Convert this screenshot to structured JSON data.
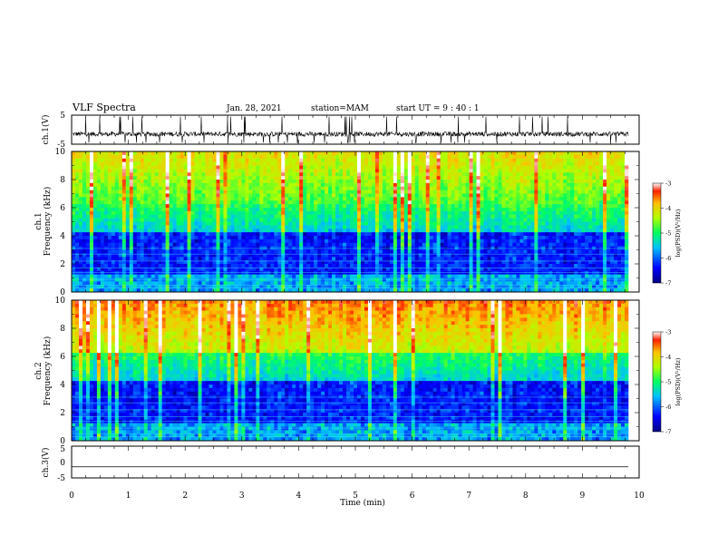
{
  "header": {
    "title": "VLF Spectra",
    "date": "Jan. 28, 2021",
    "station": "station=MAM",
    "start_ut": "start UT =  9 : 40 : 1"
  },
  "chart_data": [
    {
      "type": "line",
      "name": "waveform-ch1",
      "ylabel": "ch.1(V)",
      "ylim": [
        -5,
        5
      ],
      "yticks": [
        "5",
        "-5"
      ],
      "xlim": [
        0,
        10
      ],
      "description_level": "noisy trace around -1.5 V with spikes"
    },
    {
      "type": "heatmap",
      "name": "spectrogram-ch1",
      "ylabel_channel": "ch.1",
      "ylabel": "Frequency (kHz)",
      "ylim": [
        0,
        10
      ],
      "yticks": [
        "0",
        "2",
        "4",
        "6",
        "8",
        "10"
      ],
      "xlim": [
        0,
        10
      ],
      "colorbar": {
        "label": "log(PSD)(V²/Hz)",
        "range": [
          -7,
          -3
        ],
        "ticks": [
          "-3",
          "-4",
          "-5",
          "-6",
          "-7"
        ]
      }
    },
    {
      "type": "heatmap",
      "name": "spectrogram-ch2",
      "ylabel_channel": "ch.2",
      "ylabel": "Frequency (kHz)",
      "ylim": [
        0,
        10
      ],
      "yticks": [
        "0",
        "2",
        "4",
        "6",
        "8",
        "10"
      ],
      "xlim": [
        0,
        10
      ],
      "colorbar": {
        "label": "log(PSD)(V²/Hz)",
        "range": [
          -7,
          -3
        ],
        "ticks": [
          "-3",
          "-4",
          "-5",
          "-6",
          "-7"
        ]
      }
    },
    {
      "type": "line",
      "name": "waveform-ch3",
      "ylabel": "ch.3(V)",
      "ylim": [
        -5,
        5
      ],
      "yticks": [
        "5",
        "0",
        "-5"
      ],
      "xlim": [
        0,
        10
      ],
      "flat_value": -1.5
    }
  ],
  "xaxis": {
    "label": "Time (min)",
    "ticks": [
      "0",
      "1",
      "2",
      "3",
      "4",
      "5",
      "6",
      "7",
      "8",
      "9",
      "10"
    ]
  }
}
